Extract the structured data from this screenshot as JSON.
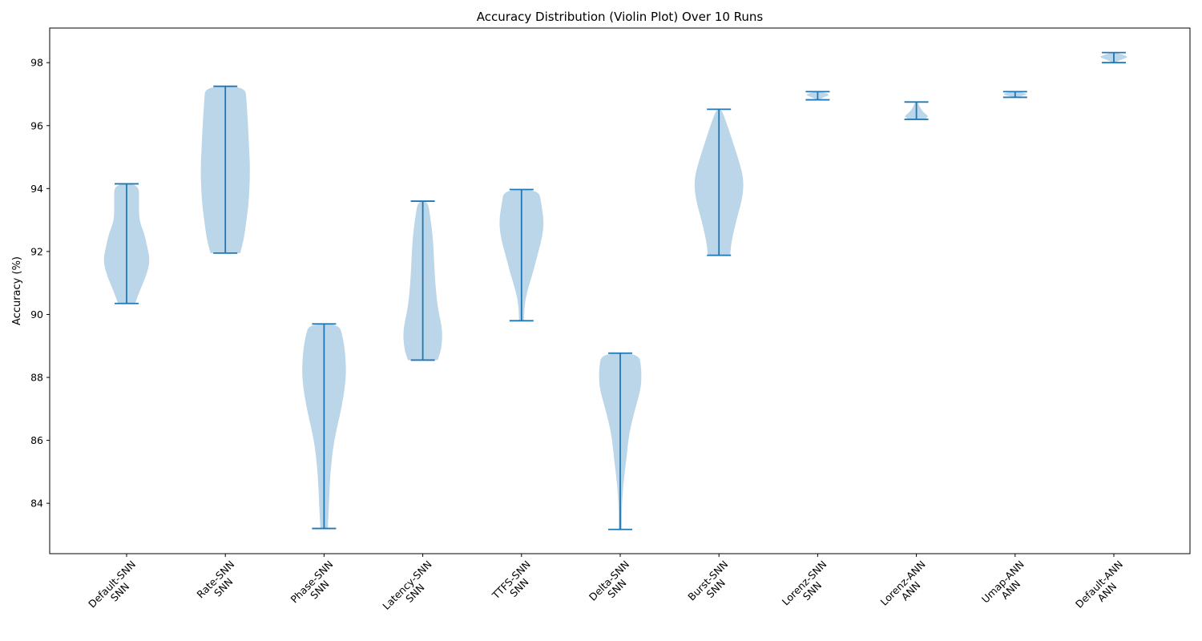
{
  "chart_data": {
    "type": "violin",
    "title": "Accuracy Distribution (Violin Plot) Over 10 Runs",
    "xlabel": "",
    "ylabel": "Accuracy (%)",
    "ylim": [
      82.4,
      99.1
    ],
    "yticks": [
      84,
      86,
      88,
      90,
      92,
      94,
      96,
      98
    ],
    "grid": false,
    "colors": {
      "body": "#1f77b4",
      "line": "#1f77b4"
    },
    "categories": [
      {
        "line1": "Default-SNN",
        "line2": "SNN"
      },
      {
        "line1": "Rate-SNN",
        "line2": "SNN"
      },
      {
        "line1": "Phase-SNN",
        "line2": "SNN"
      },
      {
        "line1": "Latency-SNN",
        "line2": "SNN"
      },
      {
        "line1": "TTFS-SNN",
        "line2": "SNN"
      },
      {
        "line1": "Delta-SNN",
        "line2": "SNN"
      },
      {
        "line1": "Burst-SNN",
        "line2": "SNN"
      },
      {
        "line1": "Lorenz-SNN",
        "line2": "SNN"
      },
      {
        "line1": "Lorenz-ANN",
        "line2": "ANN"
      },
      {
        "line1": "Umap-ANN",
        "line2": "ANN"
      },
      {
        "line1": "Default-ANN",
        "line2": "ANN"
      }
    ],
    "violins": [
      {
        "min": 90.35,
        "max": 94.15,
        "profile": [
          [
            90.35,
            0.35
          ],
          [
            90.7,
            0.5
          ],
          [
            91.2,
            0.78
          ],
          [
            91.7,
            0.95
          ],
          [
            92.2,
            0.82
          ],
          [
            92.6,
            0.7
          ],
          [
            93.0,
            0.5
          ],
          [
            93.6,
            0.5
          ],
          [
            94.15,
            0.5
          ]
        ]
      },
      {
        "min": 91.95,
        "max": 97.25,
        "profile": [
          [
            91.95,
            0.6
          ],
          [
            92.4,
            0.75
          ],
          [
            93.0,
            0.85
          ],
          [
            93.6,
            0.95
          ],
          [
            94.6,
            1.0
          ],
          [
            95.4,
            0.95
          ],
          [
            96.2,
            0.9
          ],
          [
            96.8,
            0.85
          ],
          [
            97.25,
            0.8
          ]
        ]
      },
      {
        "min": 83.2,
        "max": 89.7,
        "profile": [
          [
            83.2,
            0.15
          ],
          [
            84.0,
            0.2
          ],
          [
            85.0,
            0.25
          ],
          [
            86.0,
            0.4
          ],
          [
            87.0,
            0.7
          ],
          [
            88.0,
            0.9
          ],
          [
            88.8,
            0.85
          ],
          [
            89.3,
            0.75
          ],
          [
            89.7,
            0.6
          ]
        ]
      },
      {
        "min": 88.55,
        "max": 93.6,
        "profile": [
          [
            88.55,
            0.6
          ],
          [
            88.9,
            0.75
          ],
          [
            89.5,
            0.8
          ],
          [
            90.2,
            0.6
          ],
          [
            91.0,
            0.5
          ],
          [
            91.8,
            0.45
          ],
          [
            92.5,
            0.4
          ],
          [
            93.1,
            0.3
          ],
          [
            93.6,
            0.2
          ]
        ]
      },
      {
        "min": 89.8,
        "max": 93.97,
        "profile": [
          [
            89.8,
            0.1
          ],
          [
            90.3,
            0.12
          ],
          [
            90.8,
            0.25
          ],
          [
            91.3,
            0.45
          ],
          [
            91.9,
            0.65
          ],
          [
            92.5,
            0.85
          ],
          [
            93.0,
            0.9
          ],
          [
            93.5,
            0.8
          ],
          [
            93.97,
            0.7
          ]
        ]
      },
      {
        "min": 83.17,
        "max": 88.77,
        "profile": [
          [
            83.17,
            0.06
          ],
          [
            83.8,
            0.06
          ],
          [
            84.6,
            0.12
          ],
          [
            85.4,
            0.25
          ],
          [
            86.2,
            0.35
          ],
          [
            87.0,
            0.6
          ],
          [
            87.7,
            0.85
          ],
          [
            88.3,
            0.85
          ],
          [
            88.77,
            0.75
          ]
        ]
      },
      {
        "min": 91.88,
        "max": 96.52,
        "profile": [
          [
            91.88,
            0.45
          ],
          [
            92.3,
            0.5
          ],
          [
            93.0,
            0.7
          ],
          [
            93.7,
            0.95
          ],
          [
            94.3,
            1.0
          ],
          [
            94.9,
            0.8
          ],
          [
            95.5,
            0.55
          ],
          [
            96.1,
            0.3
          ],
          [
            96.52,
            0.1
          ]
        ]
      },
      {
        "min": 96.82,
        "max": 97.08,
        "profile": [
          [
            96.82,
            0.05
          ],
          [
            96.9,
            0.25
          ],
          [
            96.98,
            0.5
          ],
          [
            97.04,
            0.3
          ],
          [
            97.08,
            0.05
          ]
        ]
      },
      {
        "min": 96.2,
        "max": 96.75,
        "profile": [
          [
            96.2,
            0.3
          ],
          [
            96.28,
            0.5
          ],
          [
            96.38,
            0.35
          ],
          [
            96.5,
            0.2
          ],
          [
            96.62,
            0.12
          ],
          [
            96.75,
            0.05
          ]
        ]
      },
      {
        "min": 96.9,
        "max": 97.08,
        "profile": [
          [
            96.9,
            0.05
          ],
          [
            96.95,
            0.3
          ],
          [
            97.0,
            0.5
          ],
          [
            97.05,
            0.3
          ],
          [
            97.08,
            0.05
          ]
        ]
      },
      {
        "min": 98.0,
        "max": 98.32,
        "profile": [
          [
            98.0,
            0.05
          ],
          [
            98.1,
            0.3
          ],
          [
            98.18,
            0.6
          ],
          [
            98.26,
            0.35
          ],
          [
            98.32,
            0.05
          ]
        ]
      }
    ]
  }
}
